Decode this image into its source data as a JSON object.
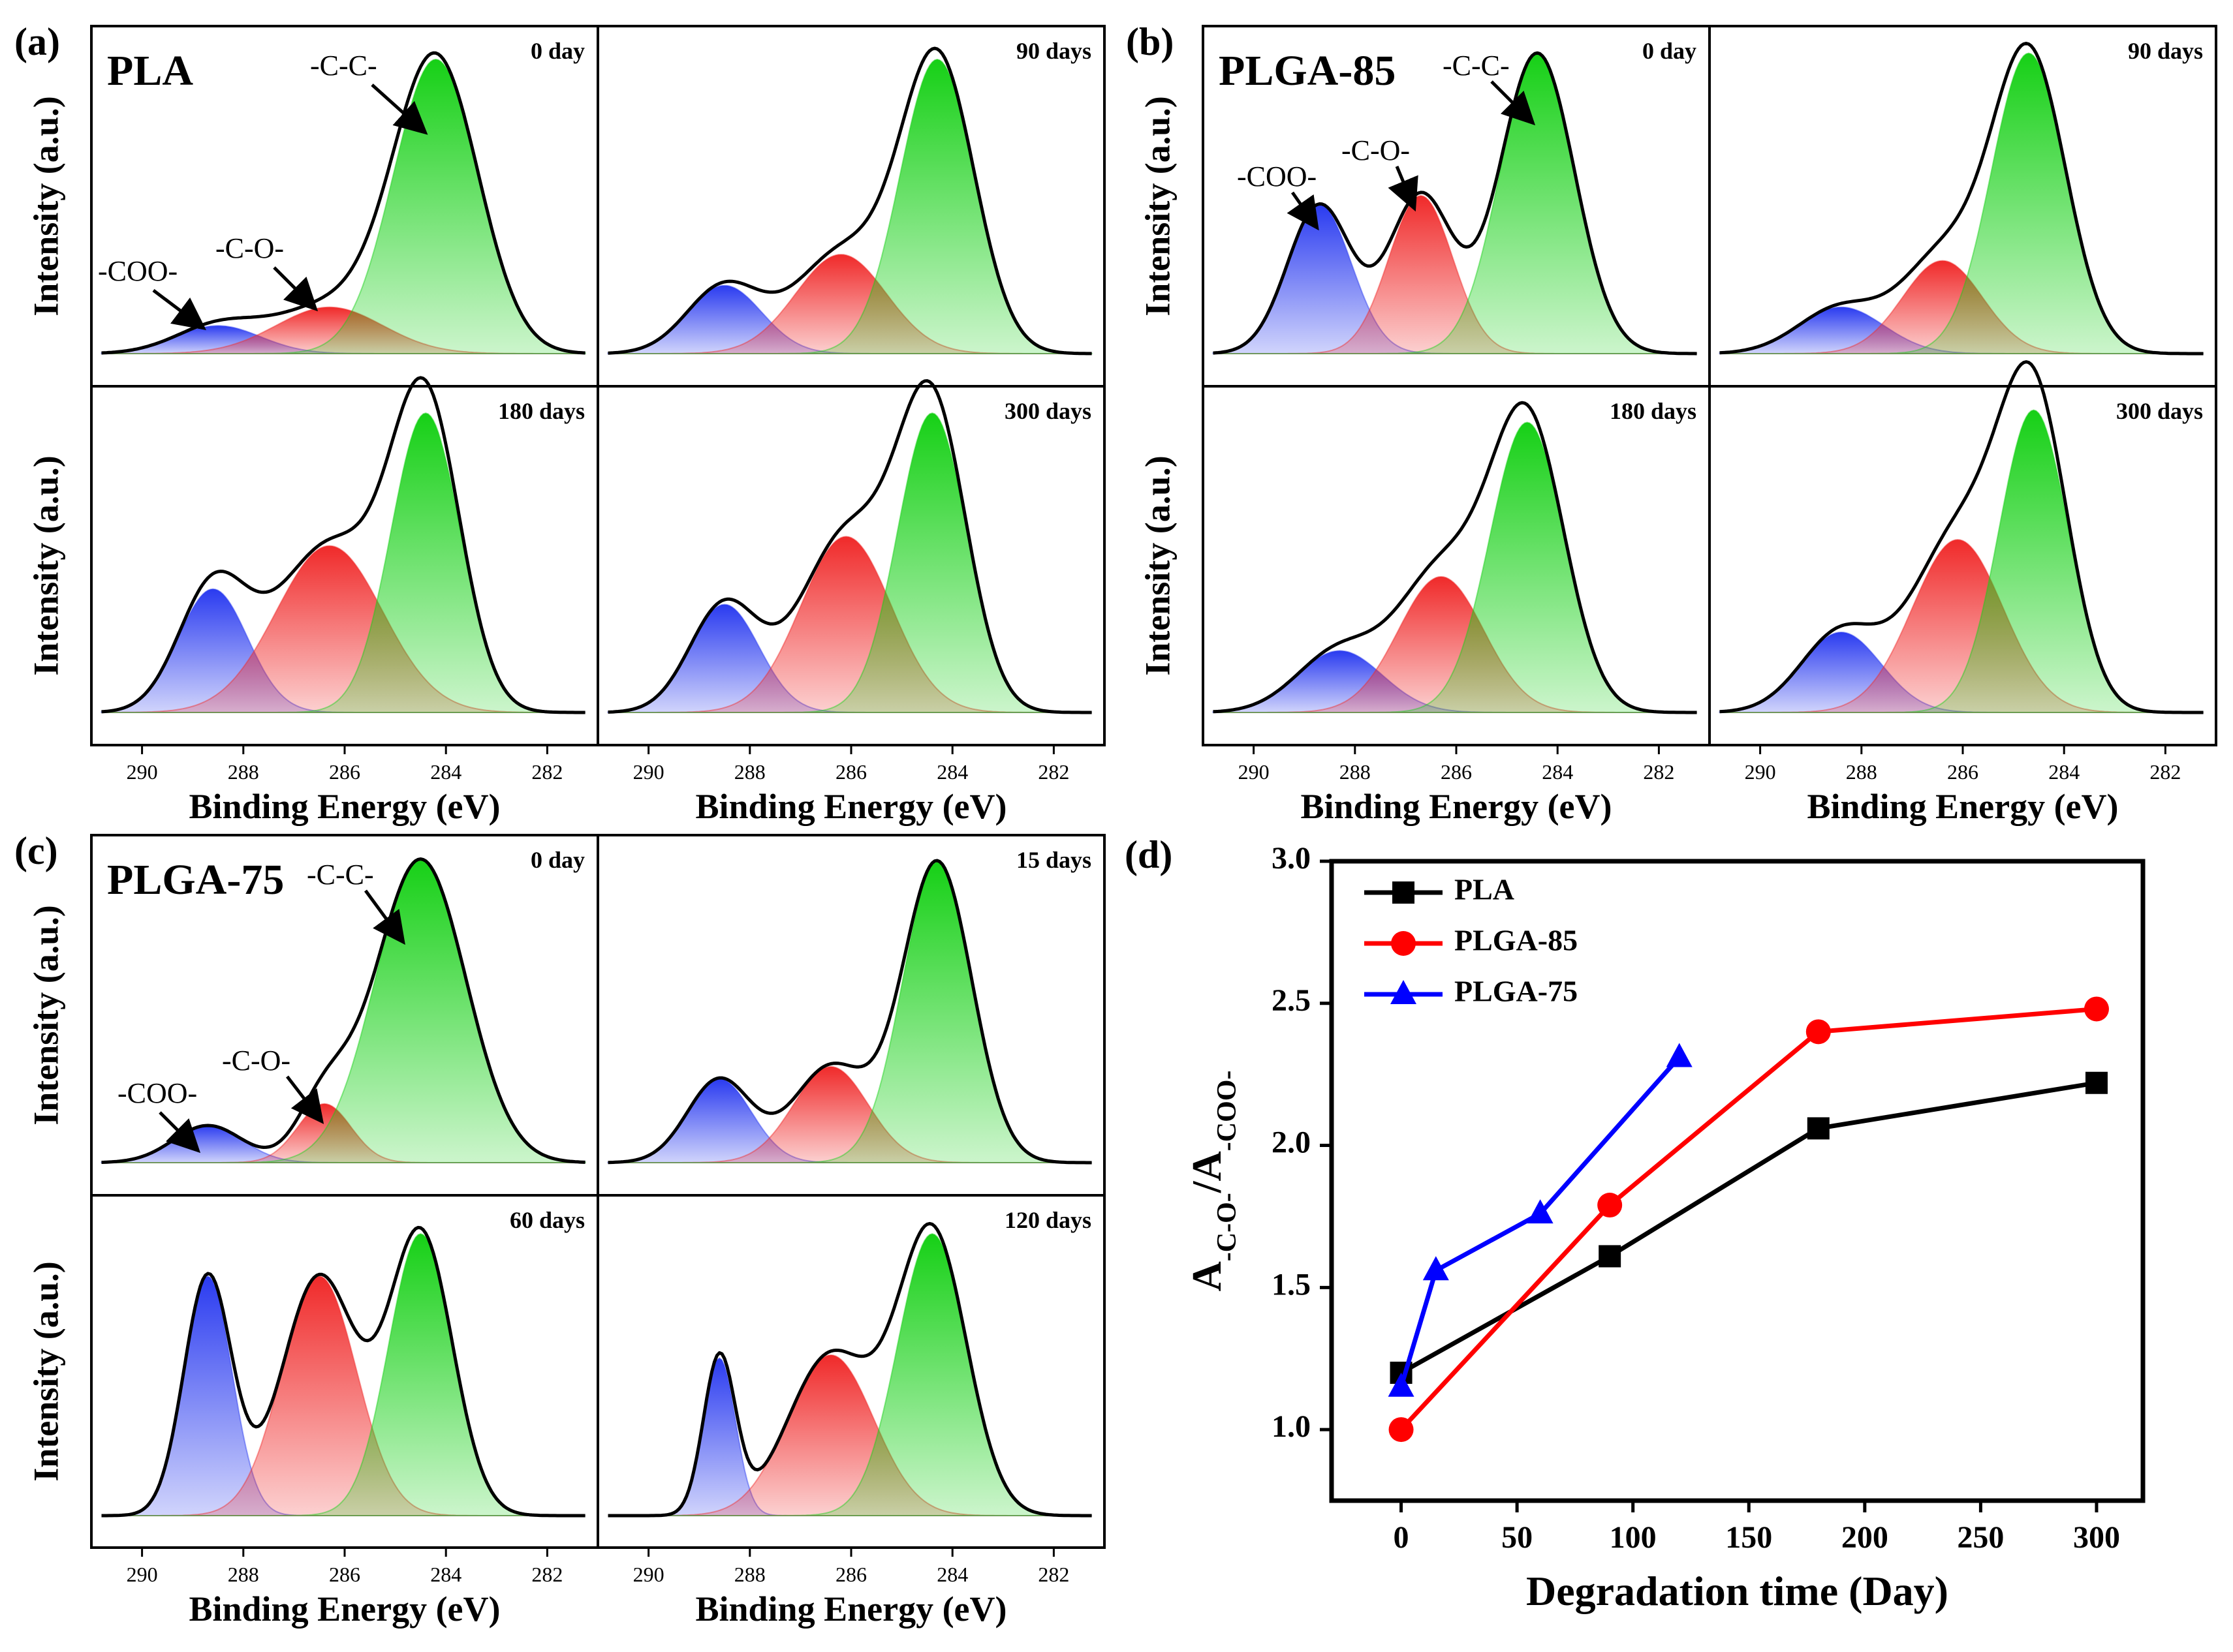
{
  "colors": {
    "coo": "#2a3bf0",
    "co": "#f02a2a",
    "cc": "#16d016",
    "envelope": "#000000",
    "pla": "#000000",
    "plga85": "#ff0000",
    "plga75": "#0000ff"
  },
  "xps": {
    "ylabel": "Intensity (a.u.)",
    "xlabel": "Binding Energy (eV)",
    "xticks": [
      "290",
      "288",
      "286",
      "284",
      "282"
    ],
    "peak_labels": {
      "coo": "-COO-",
      "co": "-C-O-",
      "cc": "-C-C-"
    },
    "groups": [
      {
        "letter": "(a)",
        "sample": "PLA",
        "subplots": [
          {
            "day": "0 day",
            "peaks": {
              "coo": {
                "center": 288.5,
                "height": 0.09,
                "width": 1.6
              },
              "co": {
                "center": 286.3,
                "height": 0.15,
                "width": 2.0
              },
              "cc": {
                "center": 284.2,
                "height": 0.95,
                "width": 1.6
              }
            }
          },
          {
            "day": "90 days",
            "peaks": {
              "coo": {
                "center": 288.5,
                "height": 0.22,
                "width": 1.4
              },
              "co": {
                "center": 286.2,
                "height": 0.32,
                "width": 1.7
              },
              "cc": {
                "center": 284.3,
                "height": 0.95,
                "width": 1.4
              }
            }
          },
          {
            "day": "180 days",
            "peaks": {
              "coo": {
                "center": 288.6,
                "height": 0.4,
                "width": 1.3
              },
              "co": {
                "center": 286.3,
                "height": 0.54,
                "width": 2.0
              },
              "cc": {
                "center": 284.4,
                "height": 0.97,
                "width": 1.3
              }
            }
          },
          {
            "day": "300 days",
            "peaks": {
              "coo": {
                "center": 288.5,
                "height": 0.35,
                "width": 1.3
              },
              "co": {
                "center": 286.1,
                "height": 0.57,
                "width": 1.7
              },
              "cc": {
                "center": 284.4,
                "height": 0.97,
                "width": 1.3
              }
            }
          }
        ]
      },
      {
        "letter": "(b)",
        "sample": "PLGA-85",
        "subplots": [
          {
            "day": "0 day",
            "peaks": {
              "coo": {
                "center": 288.7,
                "height": 0.48,
                "width": 1.2
              },
              "co": {
                "center": 286.7,
                "height": 0.51,
                "width": 1.2
              },
              "cc": {
                "center": 284.4,
                "height": 0.97,
                "width": 1.4
              }
            }
          },
          {
            "day": "90 days",
            "peaks": {
              "coo": {
                "center": 288.4,
                "height": 0.15,
                "width": 1.6
              },
              "co": {
                "center": 286.4,
                "height": 0.3,
                "width": 1.5
              },
              "cc": {
                "center": 284.7,
                "height": 0.97,
                "width": 1.4
              }
            }
          },
          {
            "day": "180 days",
            "peaks": {
              "coo": {
                "center": 288.3,
                "height": 0.2,
                "width": 1.6
              },
              "co": {
                "center": 286.3,
                "height": 0.44,
                "width": 1.6
              },
              "cc": {
                "center": 284.6,
                "height": 0.94,
                "width": 1.4
              }
            }
          },
          {
            "day": "300 days",
            "peaks": {
              "coo": {
                "center": 288.4,
                "height": 0.26,
                "width": 1.5
              },
              "co": {
                "center": 286.1,
                "height": 0.56,
                "width": 1.7
              },
              "cc": {
                "center": 284.6,
                "height": 0.98,
                "width": 1.3
              }
            }
          }
        ]
      },
      {
        "letter": "(c)",
        "sample": "PLGA-75",
        "subplots": [
          {
            "day": "0 day",
            "peaks": {
              "coo": {
                "center": 288.7,
                "height": 0.12,
                "width": 1.3
              },
              "co": {
                "center": 286.4,
                "height": 0.19,
                "width": 1.0
              },
              "cc": {
                "center": 284.5,
                "height": 0.98,
                "width": 1.7
              }
            }
          },
          {
            "day": "15 days",
            "peaks": {
              "coo": {
                "center": 288.6,
                "height": 0.27,
                "width": 1.2
              },
              "co": {
                "center": 286.4,
                "height": 0.31,
                "width": 1.4
              },
              "cc": {
                "center": 284.3,
                "height": 0.97,
                "width": 1.3
              }
            }
          },
          {
            "day": "60 days",
            "peaks": {
              "coo": {
                "center": 288.7,
                "height": 0.79,
                "width": 0.9
              },
              "co": {
                "center": 286.5,
                "height": 0.79,
                "width": 1.4
              },
              "cc": {
                "center": 284.5,
                "height": 0.93,
                "width": 1.2
              }
            }
          },
          {
            "day": "120 days",
            "peaks": {
              "coo": {
                "center": 288.6,
                "height": 0.52,
                "width": 0.6
              },
              "co": {
                "center": 286.4,
                "height": 0.53,
                "width": 1.6
              },
              "cc": {
                "center": 284.4,
                "height": 0.93,
                "width": 1.3
              }
            }
          }
        ]
      }
    ]
  },
  "chart_data": {
    "type": "line",
    "panel": "(d)",
    "xlabel": "Degradation time (Day)",
    "ylabel": "A-C-O-/A-COO-",
    "ylabel_parts": {
      "base1": "A",
      "sub1": "-C-O-",
      "slash": "/A",
      "sub2": "-COO-"
    },
    "xlim": [
      -30,
      320
    ],
    "ylim": [
      0.75,
      3.0
    ],
    "xticks": [
      0,
      50,
      100,
      150,
      200,
      250,
      300
    ],
    "yticks": [
      1.0,
      1.5,
      2.0,
      2.5,
      3.0
    ],
    "ytick_labels": [
      "1.0",
      "1.5",
      "2.0",
      "2.5",
      "3.0"
    ],
    "series": [
      {
        "name": "PLA",
        "marker": "square",
        "x": [
          0,
          90,
          180,
          300
        ],
        "y": [
          1.2,
          1.61,
          2.06,
          2.22
        ]
      },
      {
        "name": "PLGA-85",
        "marker": "circle",
        "x": [
          0,
          90,
          180,
          300
        ],
        "y": [
          1.0,
          1.79,
          2.4,
          2.48
        ]
      },
      {
        "name": "PLGA-75",
        "marker": "triangle",
        "x": [
          0,
          15,
          60,
          120
        ],
        "y": [
          1.15,
          1.56,
          1.76,
          2.31
        ]
      }
    ],
    "legend_position": "top-left"
  }
}
